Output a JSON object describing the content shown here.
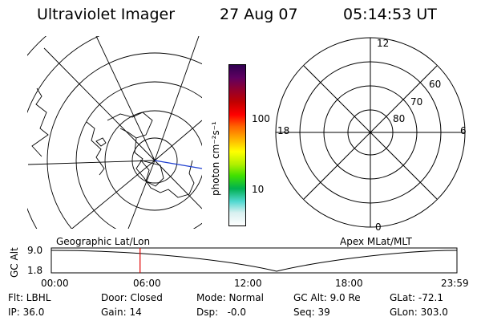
{
  "header": {
    "instrument": "Ultraviolet Imager",
    "date": "27 Aug 07",
    "time": "05:14:53 UT"
  },
  "colorbar": {
    "unit_label": "photon cm⁻²s⁻¹",
    "tick_100": "100",
    "tick_10": "10",
    "colors": [
      "#ffffff",
      "#d8f0f0",
      "#50d8d0",
      "#00b050",
      "#40e000",
      "#b0f000",
      "#ffff00",
      "#ffb000",
      "#ff6000",
      "#ff0000",
      "#c00000",
      "#900030",
      "#600060",
      "#300050"
    ]
  },
  "polar_plot": {
    "labels": {
      "top": "12",
      "bottom": "0",
      "left": "18",
      "right": "6",
      "lat_60": "60",
      "lat_70": "70",
      "lat_80": "80"
    }
  },
  "timeline": {
    "left_label": "Geographic Lat/Lon",
    "right_label": "Apex MLat/MLT",
    "axis_title": "GC Alt",
    "y_top": "9.0",
    "y_bottom": "1.8",
    "x_ticks": [
      "00:00",
      "06:00",
      "12:00",
      "18:00",
      "23:59"
    ],
    "current_marker_time": "05:14:53"
  },
  "status": {
    "row1": {
      "flt": "Flt: LBHL",
      "door": "Door: Closed",
      "mode": "Mode: Normal",
      "gcalt": "GC Alt: 9.0 Re",
      "glat": "GLat: -72.1"
    },
    "row2": {
      "ip": "IP: 36.0",
      "gain": "Gain: 14",
      "dsp": "Dsp:   -0.0",
      "seq": "Seq: 39",
      "glon": "GLon: 303.0"
    }
  }
}
